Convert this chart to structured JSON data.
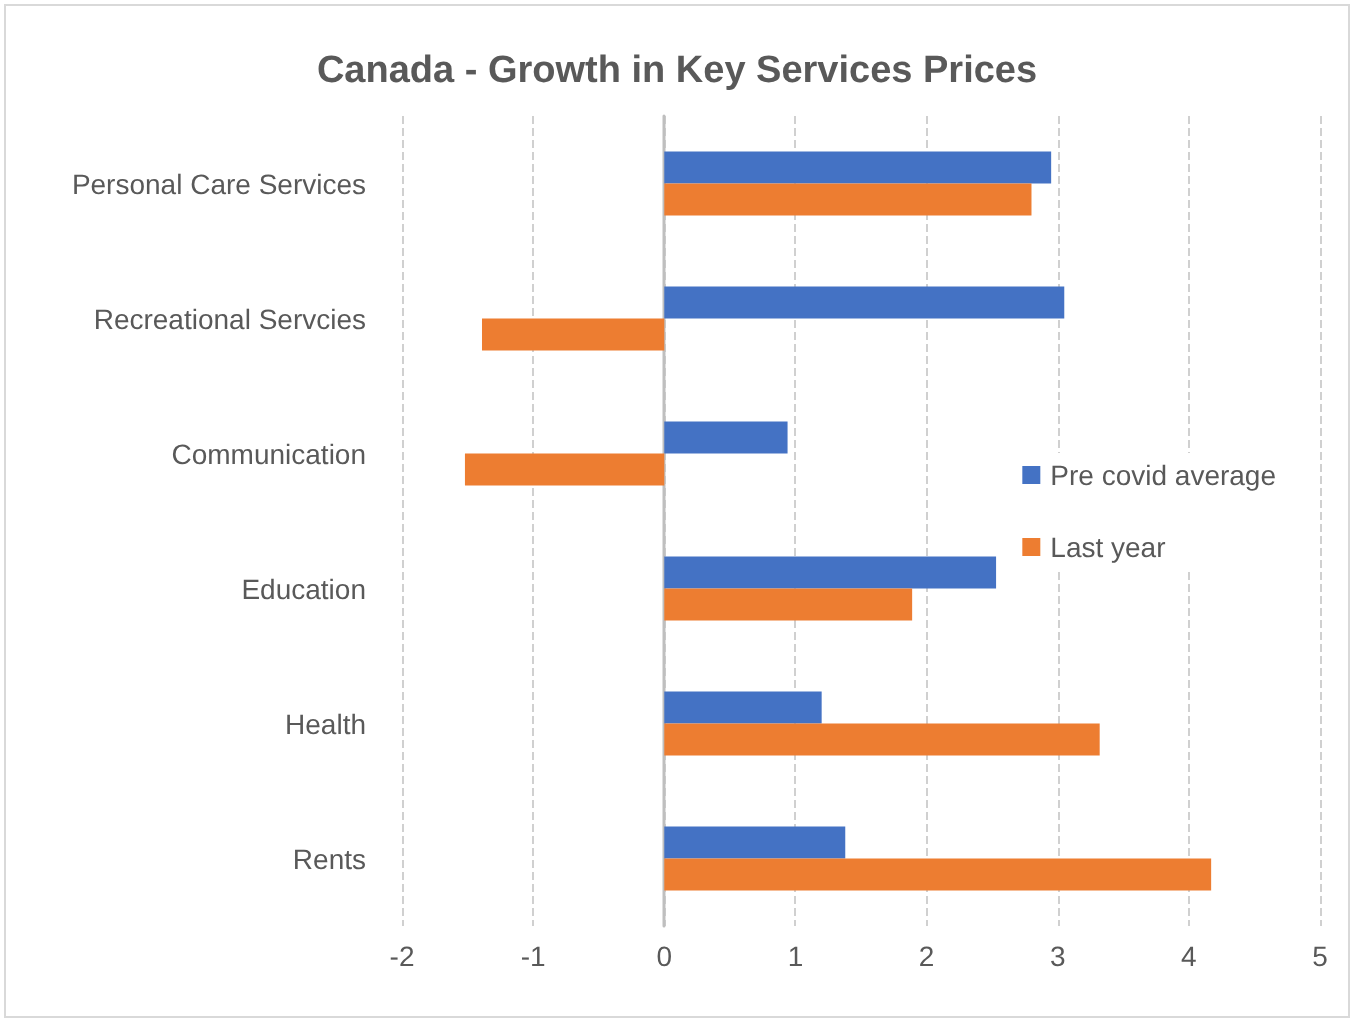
{
  "chart_data": {
    "type": "bar",
    "orientation": "horizontal",
    "title": "Canada - Growth in Key Services Prices",
    "categories": [
      "Personal Care Services",
      "Recreational Servcies",
      "Communication",
      "Education",
      "Health",
      "Rents"
    ],
    "series": [
      {
        "name": "Pre covid average",
        "color": "#4472c4",
        "values": [
          2.95,
          3.05,
          0.94,
          2.53,
          1.2,
          1.38
        ]
      },
      {
        "name": "Last year",
        "color": "#ed7d31",
        "values": [
          2.8,
          -1.39,
          -1.52,
          1.89,
          3.32,
          4.17
        ]
      }
    ],
    "xlim": [
      -2,
      5
    ],
    "xticks": [
      -2,
      -1,
      0,
      1,
      2,
      3,
      4,
      5
    ],
    "grid": "x",
    "legend": "right"
  }
}
